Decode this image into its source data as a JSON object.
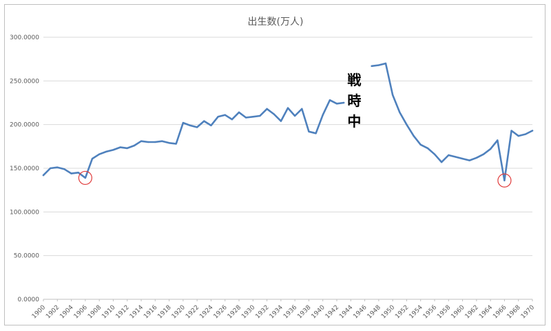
{
  "chart_data": {
    "type": "line",
    "title": "出生数(万人)",
    "xlabel": "",
    "ylabel": "",
    "ylim": [
      0,
      300
    ],
    "y_ticks": [
      "0.0000",
      "50.0000",
      "100.0000",
      "150.0000",
      "200.0000",
      "250.0000",
      "300.0000"
    ],
    "y_tick_values": [
      0,
      50,
      100,
      150,
      200,
      250,
      300
    ],
    "x_range": [
      1900,
      1970
    ],
    "x_tick_labels": [
      "1900",
      "1902",
      "1904",
      "1906",
      "1908",
      "1910",
      "1912",
      "1914",
      "1916",
      "1918",
      "1920",
      "1922",
      "1924",
      "1926",
      "1928",
      "1930",
      "1932",
      "1934",
      "1936",
      "1938",
      "1940",
      "1942",
      "1944",
      "1946",
      "1948",
      "1950",
      "1952",
      "1954",
      "1956",
      "1958",
      "1960",
      "1962",
      "1964",
      "1966",
      "1968",
      "1970"
    ],
    "grid": true,
    "legend": "none",
    "series_color": "#4f81bd",
    "annotation_color": "#e03c3c",
    "series": [
      {
        "segments": [
          {
            "x": [
              1900,
              1901,
              1902,
              1903,
              1904,
              1905,
              1906,
              1907,
              1908,
              1909,
              1910,
              1911,
              1912,
              1913,
              1914,
              1915,
              1916,
              1917,
              1918,
              1919,
              1920,
              1921,
              1922,
              1923,
              1924,
              1925,
              1926,
              1927,
              1928,
              1929,
              1930,
              1931,
              1932,
              1933,
              1934,
              1935,
              1936,
              1937,
              1938,
              1939,
              1940,
              1941,
              1942,
              1943
            ],
            "y": [
              142,
              150,
              151,
              149,
              144,
              145,
              139,
              161,
              166,
              169,
              171,
              174,
              173,
              176,
              181,
              180,
              180,
              181,
              179,
              178,
              202,
              199,
              197,
              204,
              199,
              209,
              211,
              206,
              214,
              208,
              209,
              210,
              218,
              212,
              204,
              219,
              210,
              218,
              192,
              190,
              211,
              228,
              224,
              225
            ]
          },
          {
            "x": [
              1947,
              1948,
              1949,
              1950,
              1951,
              1952,
              1953,
              1954,
              1955,
              1956,
              1957,
              1958,
              1959,
              1960,
              1961,
              1962,
              1963,
              1964,
              1965,
              1966,
              1967,
              1968,
              1969,
              1970
            ],
            "y": [
              267,
              268,
              270,
              234,
              214,
              200,
              187,
              177,
              173,
              166,
              157,
              165,
              163,
              161,
              159,
              162,
              166,
              172,
              182,
              136,
              193,
              187,
              189,
              193
            ]
          }
        ]
      }
    ],
    "annotations": [
      {
        "type": "circle",
        "x": 1906,
        "y": 139
      },
      {
        "type": "circle",
        "x": 1966,
        "y": 136
      },
      {
        "type": "text",
        "chars": [
          "戦",
          "時",
          "中"
        ]
      }
    ]
  }
}
